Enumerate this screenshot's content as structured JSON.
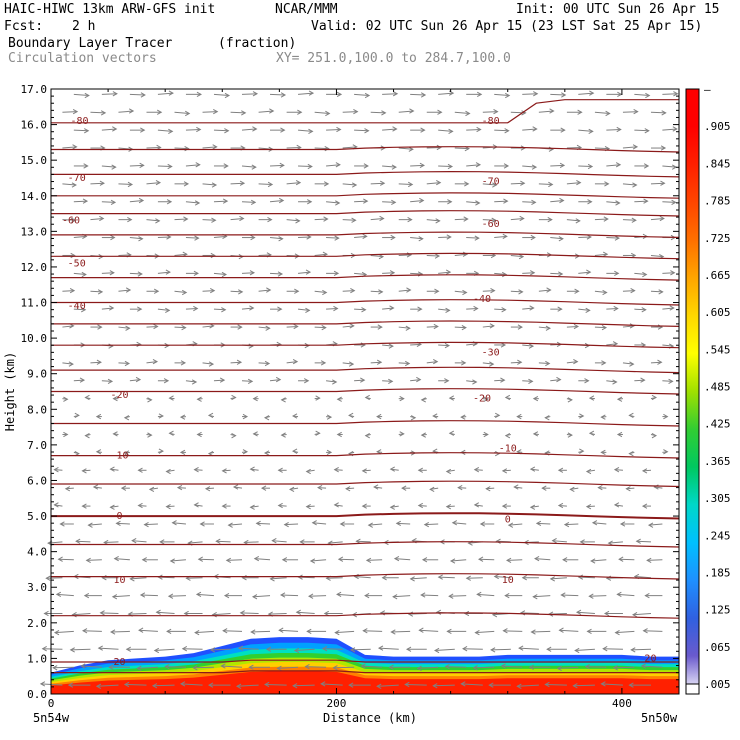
{
  "header": {
    "model": "HAIC-HIWC 13km ARW-GFS init",
    "org": "NCAR/MMM",
    "init": "Init: 00 UTC Sun 26 Apr 15",
    "fcst_label": "Fcst:",
    "fcst_value": "2 h",
    "valid": "Valid: 02 UTC Sun 26 Apr 15 (23 LST Sat 25 Apr 15)",
    "field": "Boundary Layer Tracer",
    "field_units": "(fraction)",
    "vectors": "Circulation vectors",
    "xy": "XY= 251.0,100.0 to 284.7,100.0"
  },
  "chart_data": {
    "type": "heatmap",
    "xlabel": "Distance (km)",
    "ylabel": "Height (km)",
    "xlim": [
      0,
      440
    ],
    "ylim": [
      0,
      17
    ],
    "x_ticks": [
      0,
      200,
      400
    ],
    "y_ticks": [
      "0.0",
      "1.0",
      "2.0",
      "3.0",
      "4.0",
      "5.0",
      "6.0",
      "7.0",
      "8.0",
      "9.0",
      "10.0",
      "11.0",
      "12.0",
      "13.0",
      "14.0",
      "15.0",
      "16.0",
      "17.0"
    ],
    "x_end_labels": {
      "left": "5n54w",
      "right": "5n50w"
    },
    "colorbar": {
      "labels": [
        ".005",
        ".065",
        ".125",
        ".185",
        ".245",
        ".305",
        ".365",
        ".425",
        ".485",
        ".545",
        ".605",
        ".665",
        ".725",
        ".785",
        ".845",
        ".905",
        "–"
      ],
      "colors": [
        "#ffffff",
        "#6a5acd",
        "#3060e0",
        "#1e90ff",
        "#00c0ff",
        "#00d8c8",
        "#00c860",
        "#32cd32",
        "#a0e000",
        "#ffff00",
        "#ffd700",
        "#ffa500",
        "#ff7000",
        "#ff4500",
        "#ff2000",
        "#ff0000",
        "#ff0000"
      ]
    },
    "isotherm_labels": [
      {
        "x": 20,
        "y": 16.1,
        "text": "-80"
      },
      {
        "x": 18,
        "y": 14.5,
        "text": "-70"
      },
      {
        "x": 14,
        "y": 13.3,
        "text": "-60"
      },
      {
        "x": 18,
        "y": 12.1,
        "text": "-50"
      },
      {
        "x": 18,
        "y": 10.9,
        "text": "-40"
      },
      {
        "x": 48,
        "y": 8.4,
        "text": "-20"
      },
      {
        "x": 48,
        "y": 6.7,
        "text": "-10"
      },
      {
        "x": 48,
        "y": 5.0,
        "text": "0"
      },
      {
        "x": 48,
        "y": 3.2,
        "text": "10"
      },
      {
        "x": 48,
        "y": 0.9,
        "text": "20"
      },
      {
        "x": 308,
        "y": 16.1,
        "text": "-80"
      },
      {
        "x": 308,
        "y": 14.4,
        "text": "-70"
      },
      {
        "x": 308,
        "y": 13.2,
        "text": "-60"
      },
      {
        "x": 302,
        "y": 11.1,
        "text": "-40"
      },
      {
        "x": 308,
        "y": 9.6,
        "text": "-30"
      },
      {
        "x": 302,
        "y": 8.3,
        "text": "-20"
      },
      {
        "x": 320,
        "y": 6.9,
        "text": "-10"
      },
      {
        "x": 320,
        "y": 4.9,
        "text": "0"
      },
      {
        "x": 320,
        "y": 3.2,
        "text": "10"
      },
      {
        "x": 420,
        "y": 1.0,
        "text": "20"
      }
    ],
    "isotherm_heights_km": [
      0.6,
      0.9,
      2.2,
      3.3,
      4.2,
      5.0,
      5.9,
      6.7,
      7.6,
      8.5,
      9.1,
      9.8,
      10.4,
      11.0,
      11.7,
      12.3,
      12.9,
      13.5,
      14.0,
      14.6,
      15.3,
      16.1
    ],
    "tracer_layer": {
      "x_km": [
        0,
        20,
        40,
        60,
        80,
        100,
        120,
        140,
        160,
        180,
        200,
        220,
        240,
        260,
        280,
        300,
        320,
        340,
        360,
        380,
        400,
        420,
        440
      ],
      "top_km": [
        0.6,
        0.8,
        0.95,
        1.0,
        1.05,
        1.15,
        1.35,
        1.55,
        1.6,
        1.6,
        1.55,
        1.1,
        1.05,
        1.05,
        1.05,
        1.05,
        1.1,
        1.1,
        1.1,
        1.1,
        1.1,
        1.05,
        1.05
      ]
    }
  }
}
